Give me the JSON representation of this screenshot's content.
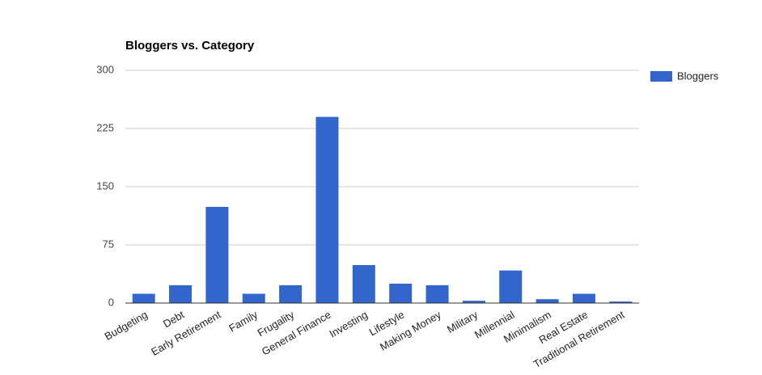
{
  "chart_data": {
    "type": "bar",
    "title": "Bloggers vs. Category",
    "categories": [
      "Budgeting",
      "Debt",
      "Early Retirement",
      "Family",
      "Frugality",
      "General Finance",
      "Investing",
      "Lifestyle",
      "Making Money",
      "Military",
      "Millennial",
      "Minimalism",
      "Real Estate",
      "Traditional Retirement"
    ],
    "series": [
      {
        "name": "Bloggers",
        "color": "#3366cc",
        "values": [
          12,
          23,
          124,
          12,
          23,
          240,
          49,
          25,
          23,
          3,
          42,
          5,
          12,
          2
        ]
      }
    ],
    "ylim": [
      0,
      300
    ],
    "yticks": [
      0,
      75,
      150,
      225,
      300
    ],
    "grid": true,
    "legend": "right"
  }
}
